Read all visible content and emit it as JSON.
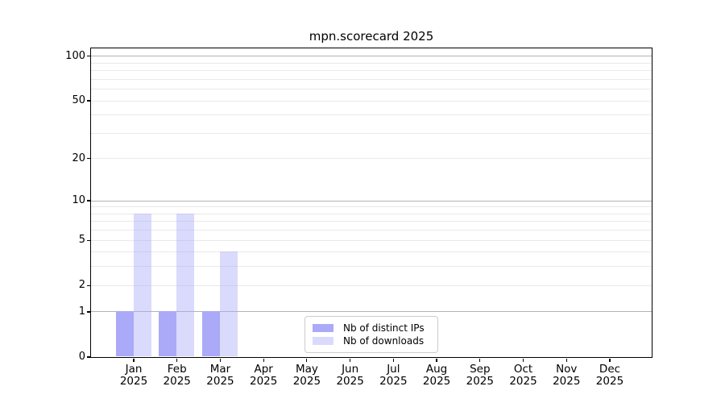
{
  "chart_data": {
    "type": "bar",
    "title": "mpn.scorecard 2025",
    "categories": [
      "Jan",
      "Feb",
      "Mar",
      "Apr",
      "May",
      "Jun",
      "Jul",
      "Aug",
      "Sep",
      "Oct",
      "Nov",
      "Dec"
    ],
    "year_label": "2025",
    "series": [
      {
        "name": "Nb of distinct IPs",
        "color": "#aaaaf8",
        "values": [
          1,
          1,
          1,
          0,
          0,
          0,
          0,
          0,
          0,
          0,
          0,
          0
        ]
      },
      {
        "name": "Nb of downloads",
        "color": "rgba(170,170,248,0.43)",
        "values": [
          8,
          8,
          4,
          0,
          0,
          0,
          0,
          0,
          0,
          0,
          0,
          0
        ]
      }
    ],
    "yscale": "log1p",
    "ylim": [
      0,
      113
    ],
    "ytick_labels": [
      "0",
      "1",
      "2",
      "5",
      "10",
      "20",
      "50",
      "100"
    ],
    "ytick_values": [
      0,
      1,
      2,
      5,
      10,
      20,
      50,
      100
    ],
    "major_gridlines": [
      1,
      10,
      100
    ],
    "minor_gridlines": [
      2,
      3,
      4,
      5,
      6,
      7,
      8,
      9,
      20,
      30,
      40,
      50,
      60,
      70,
      80,
      90
    ],
    "grid": "horizontal",
    "legend_position": "lower-center-inside",
    "colors": {
      "major_grid": "#b3b3b3",
      "minor_grid": "#e9e9e9",
      "spine": "#000000",
      "background": "#ffffff"
    }
  }
}
